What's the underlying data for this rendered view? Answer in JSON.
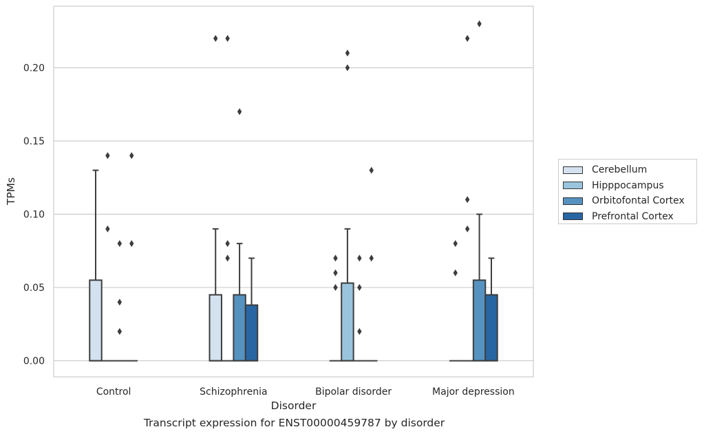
{
  "chart_data": {
    "type": "box",
    "xlabel": "Disorder",
    "ylabel": "TPMs",
    "caption": "Transcript expression for ENST00000459787 by disorder",
    "categories": [
      "Control",
      "Schizophrenia",
      "Bipolar disorder",
      "Major depression"
    ],
    "ylim": [
      -0.011,
      0.242
    ],
    "yticks": [
      "0.00",
      "0.05",
      "0.10",
      "0.15",
      "0.20"
    ],
    "grid": true,
    "legend_position": "right",
    "series": [
      {
        "name": "Cerebellum",
        "color": "#d4e2f0",
        "boxes": [
          {
            "q1": 0,
            "median": 0,
            "q3": 0.055,
            "whisker_low": 0,
            "whisker_high": 0.13,
            "outliers": []
          },
          {
            "q1": 0,
            "median": 0,
            "q3": 0.045,
            "whisker_low": 0,
            "whisker_high": 0.09,
            "outliers": [
              0.22
            ]
          },
          {
            "q1": 0,
            "median": 0,
            "q3": 0,
            "whisker_low": 0,
            "whisker_high": 0,
            "outliers": [
              0.05,
              0.06,
              0.07
            ]
          },
          {
            "q1": 0,
            "median": 0,
            "q3": 0,
            "whisker_low": 0,
            "whisker_high": 0,
            "outliers": [
              0.06,
              0.08
            ]
          }
        ]
      },
      {
        "name": "Hipppocampus",
        "color": "#9ac4dd",
        "boxes": [
          {
            "q1": 0,
            "median": 0,
            "q3": 0,
            "whisker_low": 0,
            "whisker_high": 0,
            "outliers": [
              0.09,
              0.14
            ]
          },
          {
            "q1": 0,
            "median": 0,
            "q3": 0,
            "whisker_low": 0,
            "whisker_high": 0,
            "outliers": [
              0.07,
              0.08,
              0.22
            ]
          },
          {
            "q1": 0,
            "median": 0,
            "q3": 0.053,
            "whisker_low": 0,
            "whisker_high": 0.09,
            "outliers": [
              0.2,
              0.21
            ]
          },
          {
            "q1": 0,
            "median": 0,
            "q3": 0,
            "whisker_low": 0,
            "whisker_high": 0,
            "outliers": [
              0.09,
              0.11,
              0.22
            ]
          }
        ]
      },
      {
        "name": "Orbitofontal Cortex",
        "color": "#5592c0",
        "boxes": [
          {
            "q1": 0,
            "median": 0,
            "q3": 0,
            "whisker_low": 0,
            "whisker_high": 0,
            "outliers": [
              0.02,
              0.04,
              0.08
            ]
          },
          {
            "q1": 0,
            "median": 0,
            "q3": 0.045,
            "whisker_low": 0,
            "whisker_high": 0.08,
            "outliers": [
              0.17
            ]
          },
          {
            "q1": 0,
            "median": 0,
            "q3": 0,
            "whisker_low": 0,
            "whisker_high": 0,
            "outliers": [
              0.02,
              0.05,
              0.07
            ]
          },
          {
            "q1": 0,
            "median": 0,
            "q3": 0.055,
            "whisker_low": 0,
            "whisker_high": 0.1,
            "outliers": [
              0.23
            ]
          }
        ]
      },
      {
        "name": "Prefrontal Cortex",
        "color": "#2866a3",
        "boxes": [
          {
            "q1": 0,
            "median": 0,
            "q3": 0,
            "whisker_low": 0,
            "whisker_high": 0,
            "outliers": [
              0.08,
              0.14
            ]
          },
          {
            "q1": 0,
            "median": 0,
            "q3": 0.038,
            "whisker_low": 0,
            "whisker_high": 0.07,
            "outliers": []
          },
          {
            "q1": 0,
            "median": 0,
            "q3": 0,
            "whisker_low": 0,
            "whisker_high": 0,
            "outliers": [
              0.07,
              0.13
            ]
          },
          {
            "q1": 0,
            "median": 0,
            "q3": 0.045,
            "whisker_low": 0,
            "whisker_high": 0.07,
            "outliers": []
          }
        ]
      }
    ]
  }
}
